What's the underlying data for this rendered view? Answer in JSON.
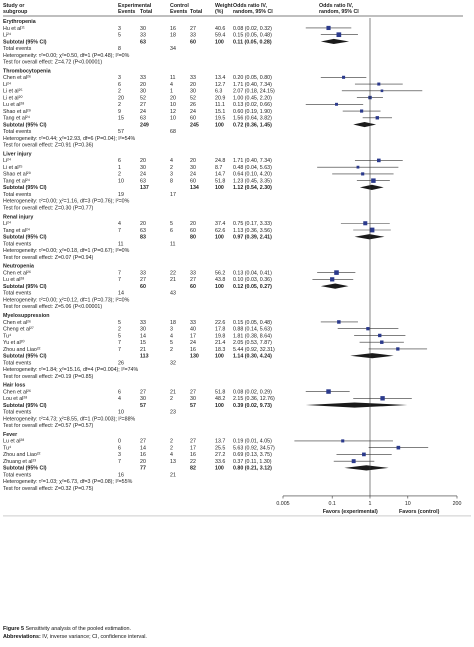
{
  "headers": {
    "study": "Study or",
    "subgroup": "subgroup",
    "experimental": "Experimental",
    "control": "Control",
    "events": "Events",
    "total": "Total",
    "weight": "Weight",
    "weight_unit": "(%)",
    "or_title": "Odds ratio IV,",
    "or_sub": "random, 95% CI"
  },
  "subgroups": [
    {
      "name": "Erythropenia",
      "studies": [
        {
          "label": "Hu et al¹¹",
          "e_events": "3",
          "e_total": "30",
          "c_events": "16",
          "c_total": "27",
          "weight": "40.6",
          "ci_text": "0.08 (0.02, 0.32)",
          "or": 0.08,
          "lo": 0.02,
          "hi": 0.32
        },
        {
          "label": "Li²⁴",
          "e_events": "5",
          "e_total": "33",
          "c_events": "18",
          "c_total": "33",
          "weight": "59.4",
          "ci_text": "0.15 (0.05, 0.48)",
          "or": 0.15,
          "lo": 0.05,
          "hi": 0.48
        }
      ],
      "subtotal": {
        "label": "Subtotal (95% CI)",
        "e_total": "63",
        "c_total": "60",
        "weight": "100",
        "ci_text": "0.11 (0.05, 0.28)",
        "or": 0.11,
        "lo": 0.05,
        "hi": 0.28
      },
      "total_events": {
        "label": "Total events",
        "e": "8",
        "c": "34"
      },
      "heterogeneity": "Heterogeneity: τ²=0.00; χ²=0.50, df=1 (P=0.48); I²=0%",
      "overall": "Test for overall effect: Z=4.72 (P<0.00001)"
    },
    {
      "name": "Thrombocytopenia",
      "studies": [
        {
          "label": "Chen et al²⁶",
          "e_events": "3",
          "e_total": "33",
          "c_events": "11",
          "c_total": "33",
          "weight": "13.4",
          "ci_text": "0.20 (0.05, 0.80)",
          "or": 0.2,
          "lo": 0.05,
          "hi": 0.8
        },
        {
          "label": "Li²⁴",
          "e_events": "6",
          "e_total": "20",
          "c_events": "4",
          "c_total": "20",
          "weight": "12.7",
          "ci_text": "1.71 (0.40, 7.34)",
          "or": 1.71,
          "lo": 0.4,
          "hi": 7.34
        },
        {
          "label": "Li et al²⁵",
          "e_events": "2",
          "e_total": "30",
          "c_events": "1",
          "c_total": "30",
          "weight": "6.3",
          "ci_text": "2.07 (0.18, 24.15)",
          "or": 2.07,
          "lo": 0.18,
          "hi": 24.15
        },
        {
          "label": "Li et al²⁰",
          "e_events": "20",
          "e_total": "52",
          "c_events": "20",
          "c_total": "52",
          "weight": "20.9",
          "ci_text": "1.00 (0.45, 2.20)",
          "or": 1.0,
          "lo": 0.45,
          "hi": 2.2
        },
        {
          "label": "Lu et al²⁸",
          "e_events": "2",
          "e_total": "27",
          "c_events": "10",
          "c_total": "26",
          "weight": "11.1",
          "ci_text": "0.13 (0.02, 0.66)",
          "or": 0.13,
          "lo": 0.02,
          "hi": 0.66
        },
        {
          "label": "Shao et al²⁹",
          "e_events": "9",
          "e_total": "24",
          "c_events": "12",
          "c_total": "24",
          "weight": "15.1",
          "ci_text": "0.60 (0.19, 1.90)",
          "or": 0.6,
          "lo": 0.19,
          "hi": 1.9
        },
        {
          "label": "Tang et al²⁴",
          "e_events": "15",
          "e_total": "63",
          "c_events": "10",
          "c_total": "60",
          "weight": "19.5",
          "ci_text": "1.56 (0.64, 3.82)",
          "or": 1.56,
          "lo": 0.64,
          "hi": 3.82
        }
      ],
      "subtotal": {
        "label": "Subtotal (95% CI)",
        "e_total": "249",
        "c_total": "245",
        "weight": "100",
        "ci_text": "0.72 (0.36, 1.45)",
        "or": 0.72,
        "lo": 0.36,
        "hi": 1.45
      },
      "total_events": {
        "label": "Total events",
        "e": "57",
        "c": "68"
      },
      "heterogeneity": "Heterogeneity: τ²=0.44; χ²=12.93, df=6 (P=0.04); I²=54%",
      "overall": "Test for overall effect: Z=0.91 (P=0.36)"
    },
    {
      "name": "Liver injury",
      "studies": [
        {
          "label": "Li²⁴",
          "e_events": "6",
          "e_total": "20",
          "c_events": "4",
          "c_total": "20",
          "weight": "24.8",
          "ci_text": "1.71 (0.40, 7.34)",
          "or": 1.71,
          "lo": 0.4,
          "hi": 7.34
        },
        {
          "label": "Li et al²⁵",
          "e_events": "1",
          "e_total": "30",
          "c_events": "2",
          "c_total": "30",
          "weight": "8.7",
          "ci_text": "0.48 (0.04, 5.63)",
          "or": 0.48,
          "lo": 0.04,
          "hi": 5.63
        },
        {
          "label": "Shao et al²⁹",
          "e_events": "2",
          "e_total": "24",
          "c_events": "3",
          "c_total": "24",
          "weight": "14.7",
          "ci_text": "0.64 (0.10, 4.20)",
          "or": 0.64,
          "lo": 0.1,
          "hi": 4.2
        },
        {
          "label": "Tang et al²⁴",
          "e_events": "10",
          "e_total": "63",
          "c_events": "8",
          "c_total": "60",
          "weight": "51.8",
          "ci_text": "1.23 (0.45, 3.35)",
          "or": 1.23,
          "lo": 0.45,
          "hi": 3.35
        }
      ],
      "subtotal": {
        "label": "Subtotal (95% CI)",
        "e_total": "137",
        "c_total": "134",
        "weight": "100",
        "ci_text": "1.12 (0.54, 2.30)",
        "or": 1.12,
        "lo": 0.54,
        "hi": 2.3
      },
      "total_events": {
        "label": "Total events",
        "e": "19",
        "c": "17"
      },
      "heterogeneity": "Heterogeneity: τ²=0.00; χ²=1.16, df=3 (P=0.76); I²=0%",
      "overall": "Test for overall effect: Z=0.30 (P=0.77)"
    },
    {
      "name": "Renal injury",
      "studies": [
        {
          "label": "Li²⁴",
          "e_events": "4",
          "e_total": "20",
          "c_events": "5",
          "c_total": "20",
          "weight": "37.4",
          "ci_text": "0.75 (0.17, 3.33)",
          "or": 0.75,
          "lo": 0.17,
          "hi": 3.33
        },
        {
          "label": "Tang et al²⁴",
          "e_events": "7",
          "e_total": "63",
          "c_events": "6",
          "c_total": "60",
          "weight": "62.6",
          "ci_text": "1.13 (0.36, 3.56)",
          "or": 1.13,
          "lo": 0.36,
          "hi": 3.56
        }
      ],
      "subtotal": {
        "label": "Subtotal (95% CI)",
        "e_total": "83",
        "c_total": "80",
        "weight": "100",
        "ci_text": "0.97 (0.39, 2.41)",
        "or": 0.97,
        "lo": 0.39,
        "hi": 2.41
      },
      "total_events": {
        "label": "Total events",
        "e": "11",
        "c": "11"
      },
      "heterogeneity": "Heterogeneity: τ²=0.00; χ²=0.18, df=1 (P=0.67); I²=0%",
      "overall": "Test for overall effect: Z=0.07 (P=0.94)"
    },
    {
      "name": "Neutropenia",
      "studies": [
        {
          "label": "Chen et al²⁶",
          "e_events": "7",
          "e_total": "33",
          "c_events": "22",
          "c_total": "33",
          "weight": "56.2",
          "ci_text": "0.13 (0.04, 0.41)",
          "or": 0.13,
          "lo": 0.04,
          "hi": 0.41
        },
        {
          "label": "Lu et al²⁸",
          "e_events": "7",
          "e_total": "27",
          "c_events": "21",
          "c_total": "27",
          "weight": "43.8",
          "ci_text": "0.10 (0.03, 0.36)",
          "or": 0.1,
          "lo": 0.03,
          "hi": 0.36
        }
      ],
      "subtotal": {
        "label": "Subtotal (95% CI)",
        "e_total": "60",
        "c_total": "60",
        "weight": "100",
        "ci_text": "0.12 (0.05, 0.27)",
        "or": 0.12,
        "lo": 0.05,
        "hi": 0.27
      },
      "total_events": {
        "label": "Total events",
        "e": "14",
        "c": "43"
      },
      "heterogeneity": "Heterogeneity: τ²=0.00; χ²=0.12, df=1 (P=0.73); I²=0%",
      "overall": "Test for overall effect: Z=5.06 (P<0.00001)"
    },
    {
      "name": "Myelosuppression",
      "studies": [
        {
          "label": "Chen et al²⁶",
          "e_events": "5",
          "e_total": "33",
          "c_events": "18",
          "c_total": "33",
          "weight": "22.6",
          "ci_text": "0.15 (0.05, 0.48)",
          "or": 0.15,
          "lo": 0.05,
          "hi": 0.48
        },
        {
          "label": "Cheng et al²⁷",
          "e_events": "2",
          "e_total": "30",
          "c_events": "3",
          "c_total": "40",
          "weight": "17.8",
          "ci_text": "0.88 (0.14, 5.63)",
          "or": 0.88,
          "lo": 0.14,
          "hi": 5.63
        },
        {
          "label": "Tu⁴",
          "e_events": "5",
          "e_total": "14",
          "c_events": "4",
          "c_total": "17",
          "weight": "19.8",
          "ci_text": "1.81 (0.38, 8.64)",
          "or": 1.81,
          "lo": 0.38,
          "hi": 8.64
        },
        {
          "label": "Yu et al²⁰",
          "e_events": "7",
          "e_total": "15",
          "c_events": "5",
          "c_total": "24",
          "weight": "21.4",
          "ci_text": "2.05 (0.53, 7.87)",
          "or": 2.05,
          "lo": 0.53,
          "hi": 7.87
        },
        {
          "label": "Zhou and Liao²²",
          "e_events": "7",
          "e_total": "21",
          "c_events": "2",
          "c_total": "16",
          "weight": "18.3",
          "ci_text": "5.44 (0.92, 32.31)",
          "or": 5.44,
          "lo": 0.92,
          "hi": 32.31
        }
      ],
      "subtotal": {
        "label": "Subtotal (95% CI)",
        "e_total": "113",
        "c_total": "130",
        "weight": "100",
        "ci_text": "1.14 (0.30, 4.24)",
        "or": 1.14,
        "lo": 0.3,
        "hi": 4.24
      },
      "total_events": {
        "label": "Total events",
        "e": "26",
        "c": "32"
      },
      "heterogeneity": "Heterogeneity: τ²=1.84; χ²=15.16, df=4 (P=0.004); I²=74%",
      "overall": "Test for overall effect: Z=0.19 (P=0.85)"
    },
    {
      "name": "Hair loss",
      "studies": [
        {
          "label": "Chen et al²⁶",
          "e_events": "6",
          "e_total": "27",
          "c_events": "21",
          "c_total": "27",
          "weight": "51.8",
          "ci_text": "0.08 (0.02, 0.29)",
          "or": 0.08,
          "lo": 0.02,
          "hi": 0.29
        },
        {
          "label": "Lou et al²⁸",
          "e_events": "4",
          "e_total": "30",
          "c_events": "2",
          "c_total": "30",
          "weight": "48.2",
          "ci_text": "2.15 (0.36, 12.76)",
          "or": 2.15,
          "lo": 0.36,
          "hi": 12.76
        }
      ],
      "subtotal": {
        "label": "Subtotal (95% CI)",
        "e_total": "57",
        "c_total": "57",
        "weight": "100",
        "ci_text": "0.39 (0.02, 9.73)",
        "or": 0.39,
        "lo": 0.02,
        "hi": 9.73
      },
      "total_events": {
        "label": "Total events",
        "e": "10",
        "c": "23"
      },
      "heterogeneity": "Heterogeneity: τ²=4.73; χ²=8.55, df=1 (P=0.003); I²=88%",
      "overall": "Test for overall effect: Z=0.57 (P=0.57)"
    },
    {
      "name": "Fever",
      "studies": [
        {
          "label": "Lu et al²⁸",
          "e_events": "0",
          "e_total": "27",
          "c_events": "2",
          "c_total": "27",
          "weight": "13.7",
          "ci_text": "0.19 (0.01, 4.05)",
          "or": 0.19,
          "lo": 0.01,
          "hi": 4.05
        },
        {
          "label": "Tu⁴",
          "e_events": "6",
          "e_total": "14",
          "c_events": "2",
          "c_total": "17",
          "weight": "25.5",
          "ci_text": "5.63 (0.92, 34.57)",
          "or": 5.63,
          "lo": 0.92,
          "hi": 34.57
        },
        {
          "label": "Zhou and Liao²²",
          "e_events": "3",
          "e_total": "16",
          "c_events": "4",
          "c_total": "16",
          "weight": "27.2",
          "ci_text": "0.69 (0.13, 3.75)",
          "or": 0.69,
          "lo": 0.13,
          "hi": 3.75
        },
        {
          "label": "Zhuang et al²³",
          "e_events": "7",
          "e_total": "20",
          "c_events": "13",
          "c_total": "22",
          "weight": "33.6",
          "ci_text": "0.37 (0.11, 1.30)",
          "or": 0.37,
          "lo": 0.11,
          "hi": 1.3
        }
      ],
      "subtotal": {
        "label": "Subtotal (95% CI)",
        "e_total": "77",
        "c_total": "82",
        "weight": "100",
        "ci_text": "0.80 (0.21, 3.12)",
        "or": 0.8,
        "lo": 0.21,
        "hi": 3.12
      },
      "total_events": {
        "label": "Total events",
        "e": "16",
        "c": "21"
      },
      "heterogeneity": "Heterogeneity: τ²=1.03; χ²=6.73, df=3 (P=0.08); I²=55%",
      "overall": "Test for overall effect: Z=0.32 (P=0.75)"
    }
  ],
  "axis": {
    "ticks": [
      0.005,
      0.1,
      1,
      10,
      200
    ],
    "tick_labels": [
      "0.005",
      "0.1",
      "1",
      "10",
      "200"
    ],
    "range": [
      0.005,
      200
    ],
    "favors_left": "Favors (experimental)",
    "favors_right": "Favors (control)"
  },
  "colors": {
    "square": "#2b3a8c",
    "diamond": "#1a1a1a",
    "line": "#333333",
    "rule": "#555555",
    "text": "#222222"
  },
  "caption": {
    "figure_label": "Figure 5",
    "figure_text": " Sensitivity analysis of the pooled estimation.",
    "abbr_label": "Abbreviations:",
    "abbr_text": " IV, inverse variance; CI, confidence interval."
  }
}
